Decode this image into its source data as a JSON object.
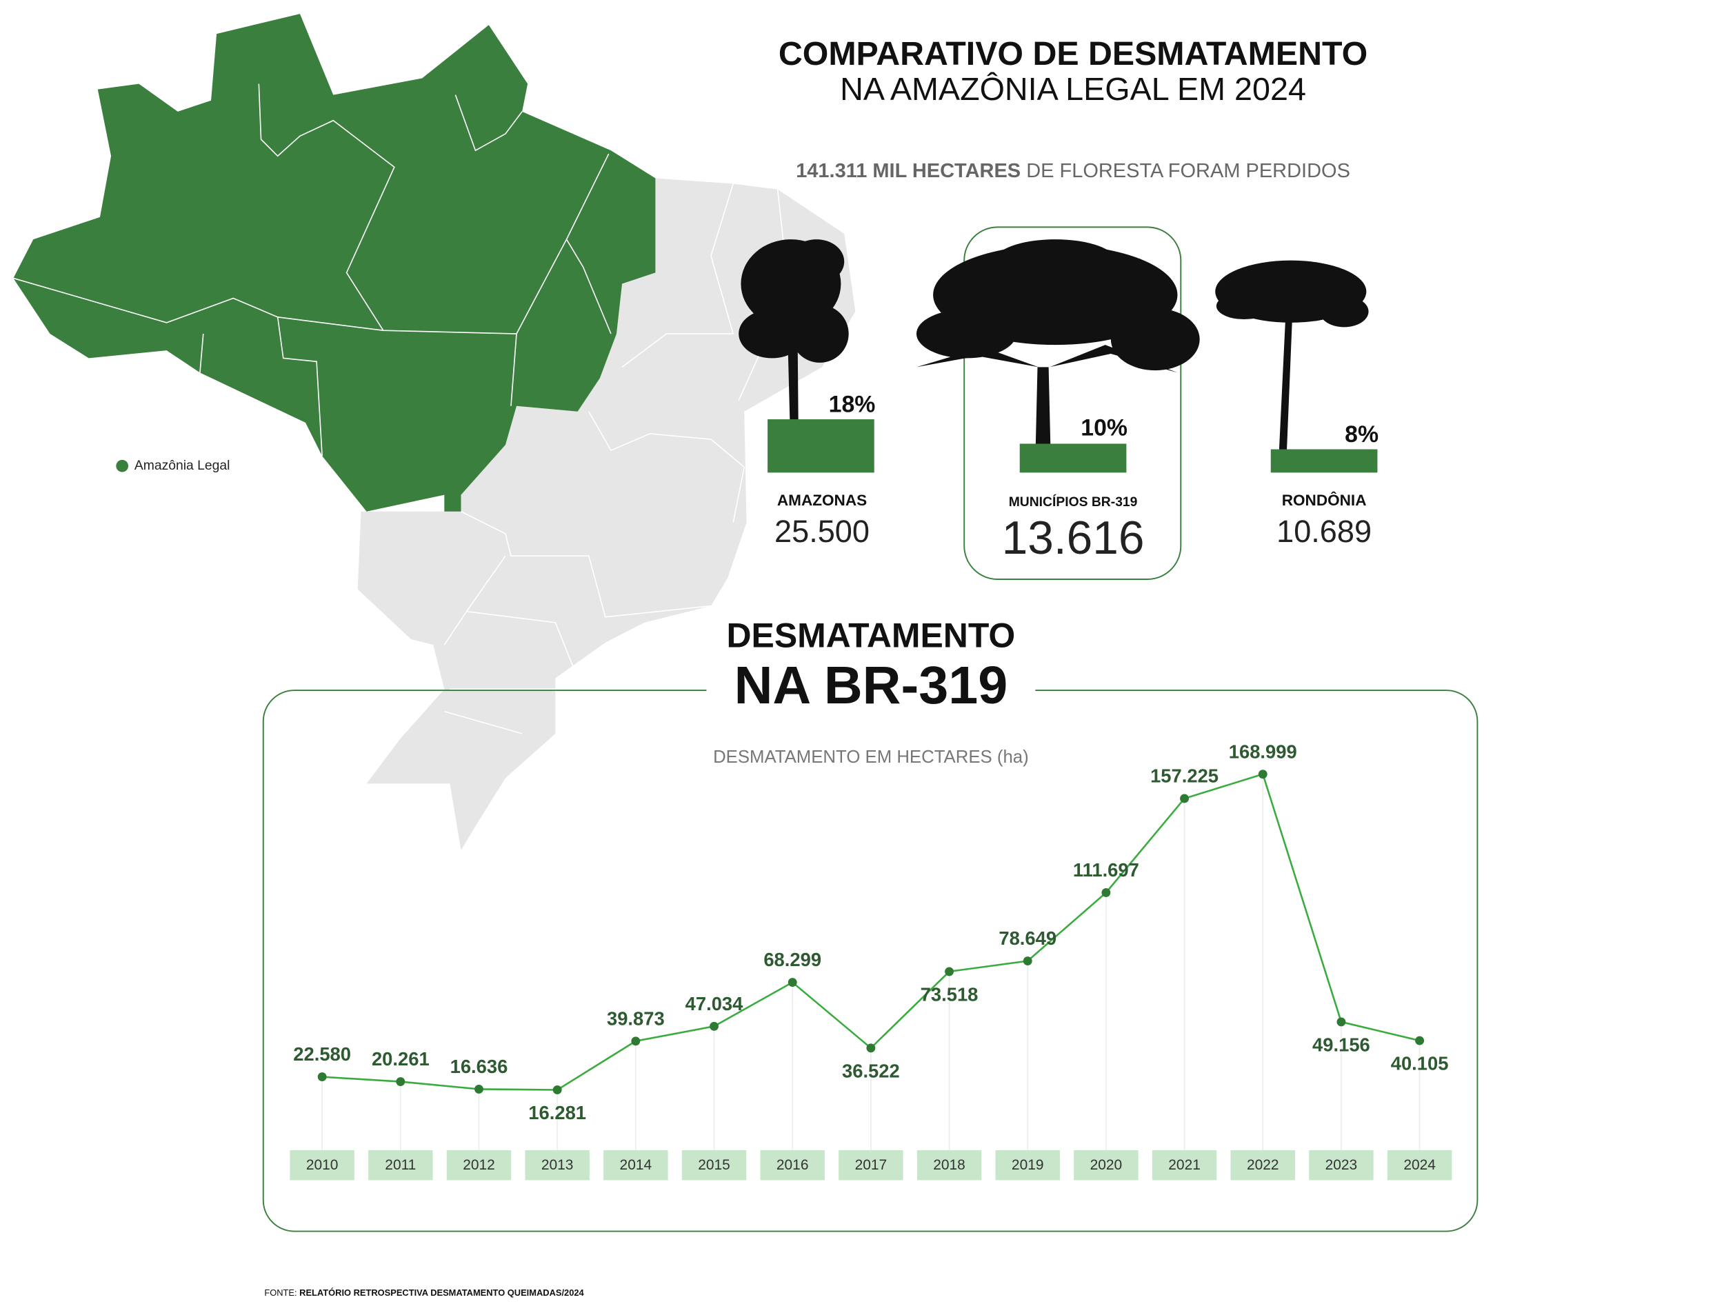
{
  "header": {
    "title_line1": "COMPARATIVO DE DESMATAMENTO",
    "title_line2": "NA AMAZÔNIA LEGAL EM 2024",
    "subtitle_bold": "141.311 MIL HECTARES",
    "subtitle_rest": "DE FLORESTA FORAM PERDIDOS"
  },
  "map": {
    "legend": "Amazônia Legal"
  },
  "cards": [
    {
      "percent": "18%",
      "name": "AMAZONAS",
      "value": "25.500"
    },
    {
      "percent": "10%",
      "name": "MUNICÍPIOS BR-319",
      "value": "13.616"
    },
    {
      "percent": "8%",
      "name": "RONDÔNIA",
      "value": "10.689"
    }
  ],
  "chart_data": {
    "type": "line",
    "title": "DESMATAMENTO",
    "title_line2": "NA BR-319",
    "y_label": "DESMATAMENTO EM HECTARES (ha)",
    "categories": [
      "2010",
      "2011",
      "2012",
      "2013",
      "2014",
      "2015",
      "2016",
      "2017",
      "2018",
      "2019",
      "2020",
      "2021",
      "2022",
      "2023",
      "2024"
    ],
    "values": [
      22580,
      20261,
      16636,
      16281,
      39873,
      47034,
      68299,
      36522,
      73518,
      78649,
      111697,
      157225,
      168999,
      49156,
      40105
    ],
    "value_labels": [
      "22.580",
      "20.261",
      "16.636",
      "16.281",
      "39.873",
      "47.034",
      "68.299",
      "36.522",
      "73.518",
      "78.649",
      "111.697",
      "157.225",
      "168.999",
      "49.156",
      "40.105"
    ],
    "color": "#3aac3f",
    "marker_color": "#2f7a33",
    "ylim": [
      0,
      180000
    ]
  },
  "source": {
    "label": "FONTE:",
    "text": "RELATÓRIO RETROSPECTIVA DESMATAMENTO QUEIMADAS/2024"
  }
}
